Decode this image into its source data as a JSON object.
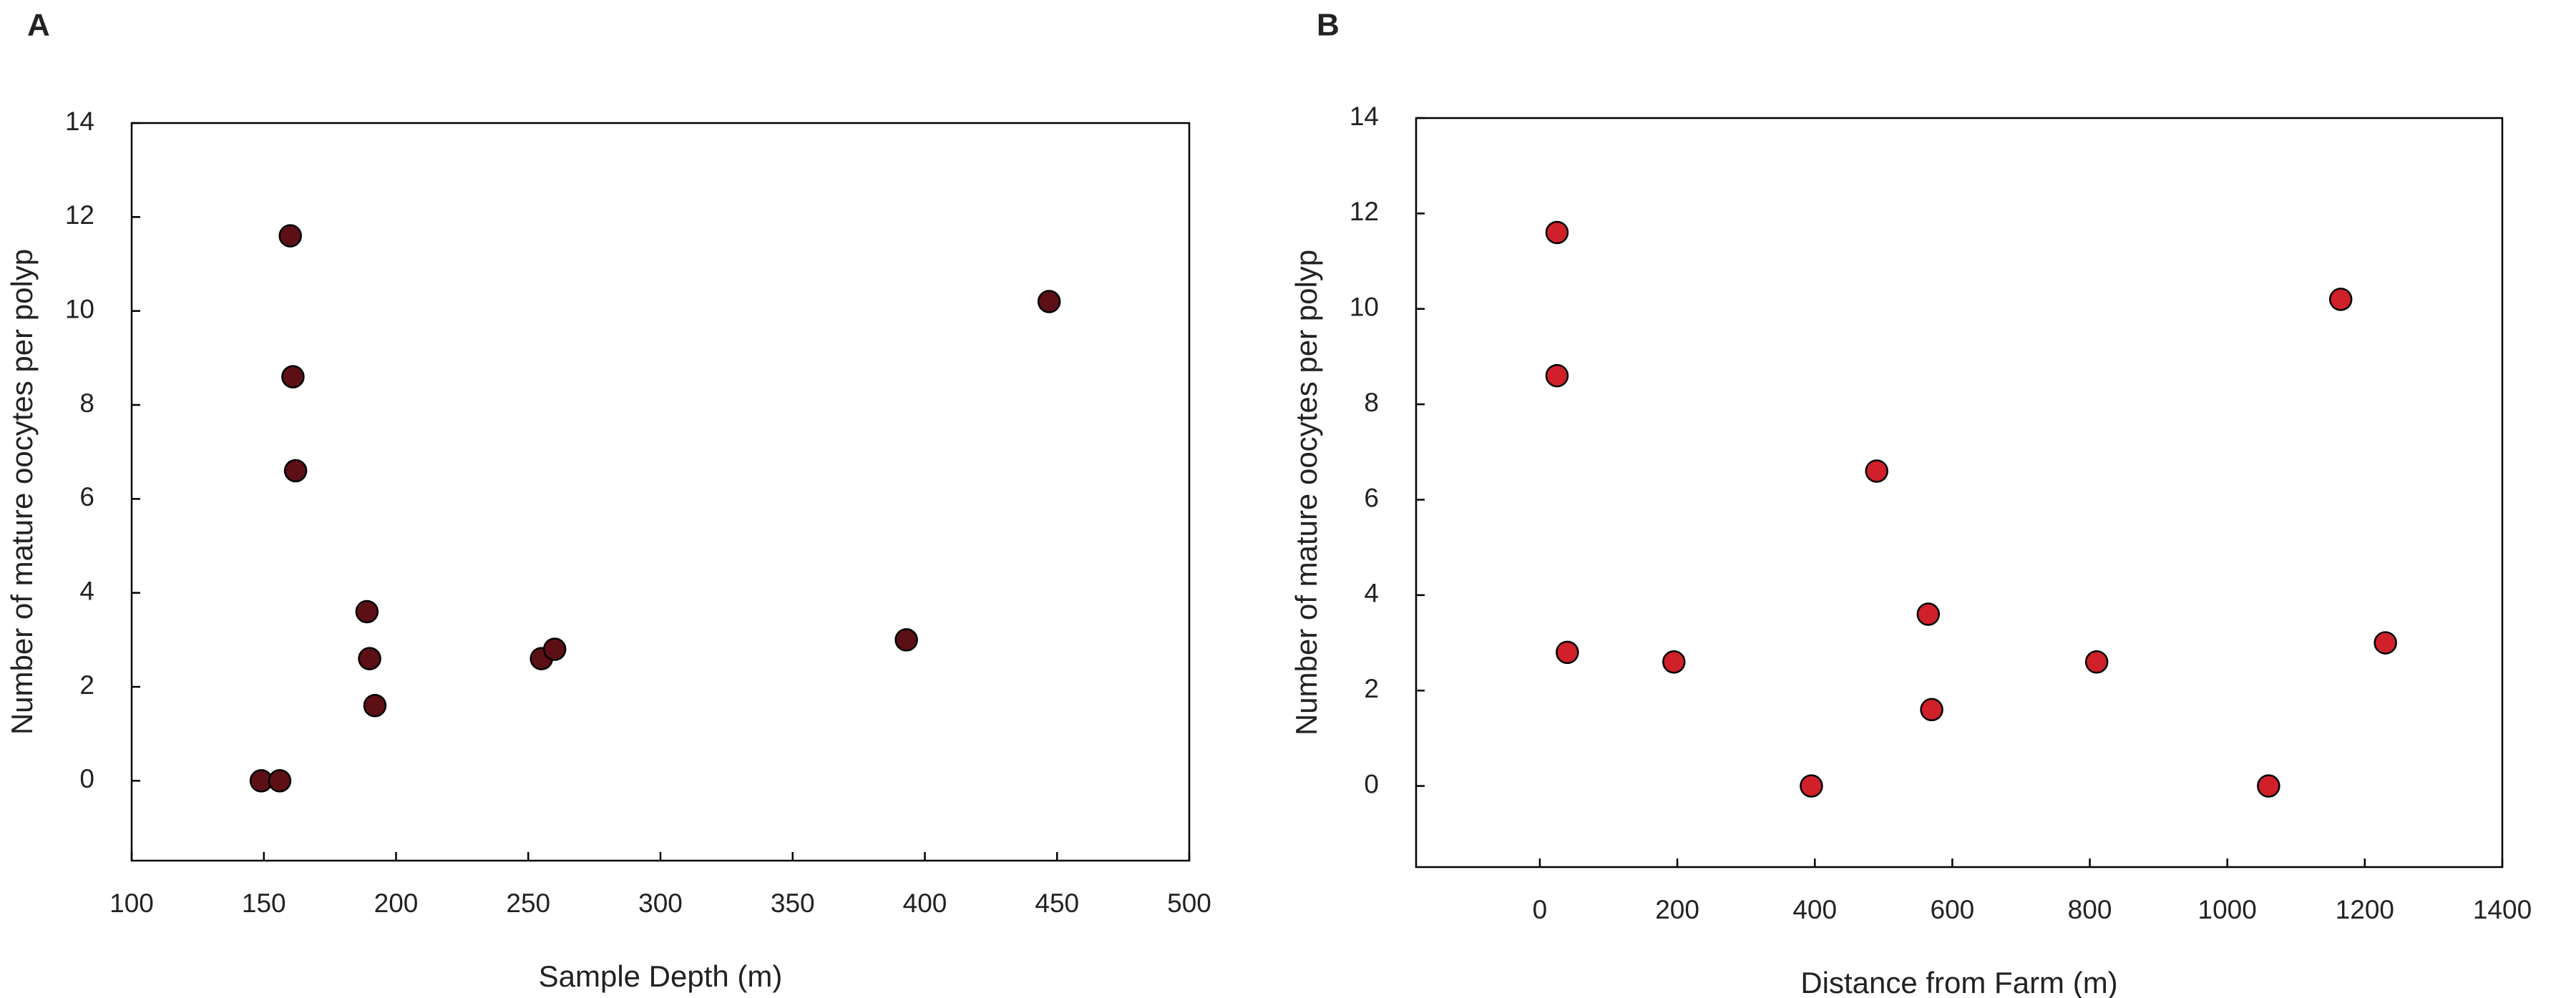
{
  "chart_data": [
    {
      "type": "scatter",
      "panel_label": "A",
      "x_label": "Sample Depth (m)",
      "y_label": "Number of mature oocytes per polyp",
      "series": [
        {
          "color": "#5c1016",
          "x": [
            160,
            161,
            162,
            189,
            190,
            192,
            149,
            156,
            255,
            260,
            393,
            447
          ],
          "values": [
            11.6,
            8.6,
            6.6,
            3.6,
            2.6,
            1.6,
            0,
            0,
            2.6,
            2.8,
            3,
            10.2
          ]
        }
      ],
      "xlim": [
        100,
        500
      ],
      "xticks": [
        100,
        150,
        200,
        250,
        300,
        350,
        400,
        450,
        500
      ],
      "ylim": [
        -1.7,
        14
      ],
      "yticks": [
        0,
        2,
        4,
        6,
        8,
        10,
        12,
        14
      ]
    },
    {
      "type": "scatter",
      "panel_label": "B",
      "x_label": "Distance from Farm (m)",
      "y_label": "Number of mature oocytes per polyp",
      "series": [
        {
          "color": "#d0202a",
          "x": [
            25,
            25,
            40,
            195,
            395,
            490,
            565,
            570,
            810,
            1060,
            1165,
            1230
          ],
          "values": [
            11.6,
            8.6,
            2.8,
            2.6,
            0,
            6.6,
            3.6,
            1.6,
            2.6,
            0,
            10.2,
            3
          ]
        }
      ],
      "xlim": [
        -180,
        1400
      ],
      "xticks": [
        0,
        200,
        400,
        600,
        800,
        1000,
        1200,
        1400
      ],
      "ylim": [
        -1.7,
        14
      ],
      "yticks": [
        0,
        2,
        4,
        6,
        8,
        10,
        12,
        14
      ]
    }
  ]
}
